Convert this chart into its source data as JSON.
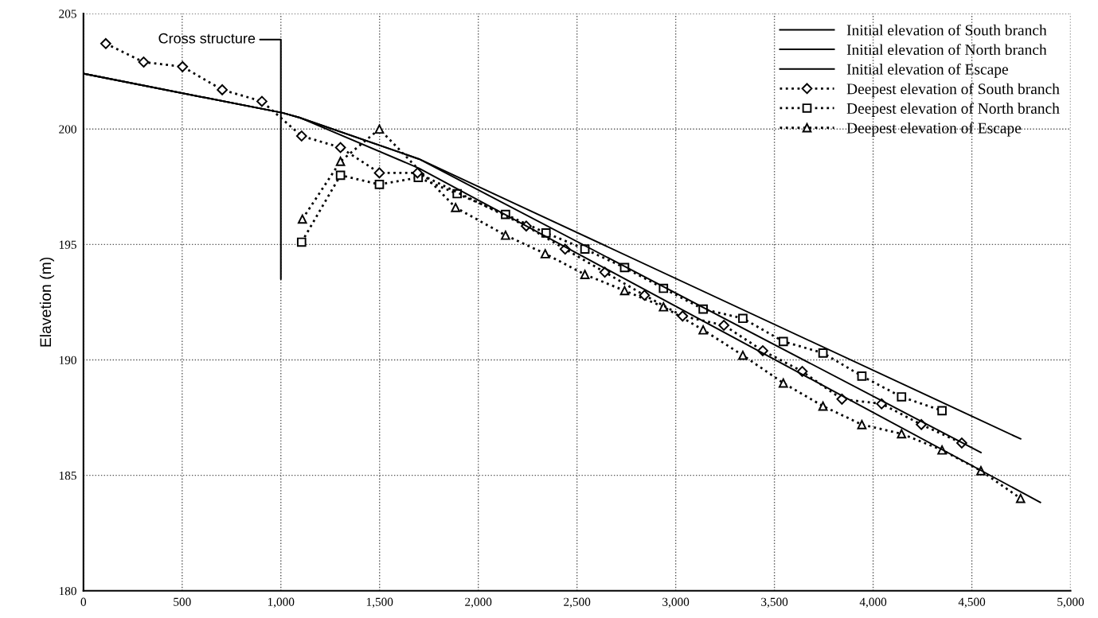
{
  "chart_data": {
    "type": "line",
    "ylabel": "Elavetion (m)",
    "xlim": [
      0,
      5000
    ],
    "ylim": [
      180,
      205
    ],
    "xticks": [
      0,
      500,
      {
        "value": 1000,
        "label": "1,000"
      },
      {
        "value": 1500,
        "label": "1,500"
      },
      {
        "value": 2000,
        "label": "2,000"
      },
      {
        "value": 2500,
        "label": "2,500"
      },
      {
        "value": 3000,
        "label": "3,000"
      },
      {
        "value": 3500,
        "label": "3,500"
      },
      {
        "value": 4000,
        "label": "4,000"
      },
      {
        "value": 4500,
        "label": "4,500"
      },
      {
        "value": 5000,
        "label": "5,000"
      }
    ],
    "yticks": [
      180,
      185,
      190,
      195,
      200,
      205
    ],
    "grid": true,
    "legend": "top right",
    "annotations": [
      "Cross structure"
    ],
    "series": [
      {
        "name": "Initial elevation of South branch",
        "color": "#000000",
        "marker": "none",
        "line_style": "solid",
        "x": [
          0,
          1009,
          1093,
          1700,
          4546
        ],
        "values": [
          202.4,
          200.7,
          200.5,
          198.7,
          185.99
        ]
      },
      {
        "name": "Initial elevation of North branch",
        "color": "#000000",
        "marker": "none",
        "line_style": "solid",
        "x": [
          0,
          1009,
          1093,
          1700,
          4747
        ],
        "values": [
          202.4,
          200.7,
          200.5,
          198.7,
          186.58
        ]
      },
      {
        "name": "Initial elevation of Escape",
        "color": "#000000",
        "marker": "none",
        "line_style": "solid",
        "x": [
          0,
          1009,
          1093,
          1700,
          4847
        ],
        "values": [
          202.4,
          200.7,
          200.5,
          198.3,
          183.83
        ]
      },
      {
        "name": "Deepest elevation of South branch",
        "color": "#000000",
        "marker": "diamond",
        "line_style": "dotted",
        "x": [
          113,
          305,
          502,
          703,
          904,
          1105,
          1302,
          1499,
          1692,
          2243,
          2440,
          2641,
          2842,
          3035,
          3244,
          3441,
          3641,
          3842,
          4043,
          4244,
          4449
        ],
        "values": [
          203.7,
          202.9,
          202.7,
          201.7,
          201.2,
          199.7,
          199.2,
          198.1,
          198.1,
          195.8,
          194.8,
          193.8,
          192.8,
          191.9,
          191.5,
          190.4,
          189.5,
          188.3,
          188.1,
          187.2,
          186.4
        ]
      },
      {
        "name": "Deepest elevation of North branch",
        "color": "#000000",
        "marker": "square",
        "line_style": "dotted",
        "x": [
          1105,
          1302,
          1499,
          1696,
          1893,
          2138,
          2343,
          2540,
          2741,
          2938,
          3139,
          3340,
          3545,
          3746,
          3943,
          4144,
          4349
        ],
        "values": [
          195.1,
          198.0,
          197.6,
          197.9,
          197.2,
          196.3,
          195.5,
          194.8,
          194.0,
          193.1,
          192.2,
          191.8,
          190.8,
          190.3,
          189.3,
          188.4,
          187.8
        ]
      },
      {
        "name": "Deepest elevation of Escape",
        "color": "#000000",
        "marker": "triangle",
        "line_style": "dotted",
        "x": [
          1109,
          1302,
          1499,
          1885,
          2138,
          2339,
          2540,
          2741,
          2938,
          3139,
          3340,
          3545,
          3746,
          3943,
          4144,
          4349,
          4546,
          4747
        ],
        "values": [
          196.1,
          198.6,
          200.0,
          196.6,
          195.4,
          194.6,
          193.7,
          193.0,
          192.3,
          191.3,
          190.2,
          189.0,
          188.0,
          187.2,
          186.8,
          186.1,
          185.2,
          184.0
        ]
      }
    ]
  }
}
